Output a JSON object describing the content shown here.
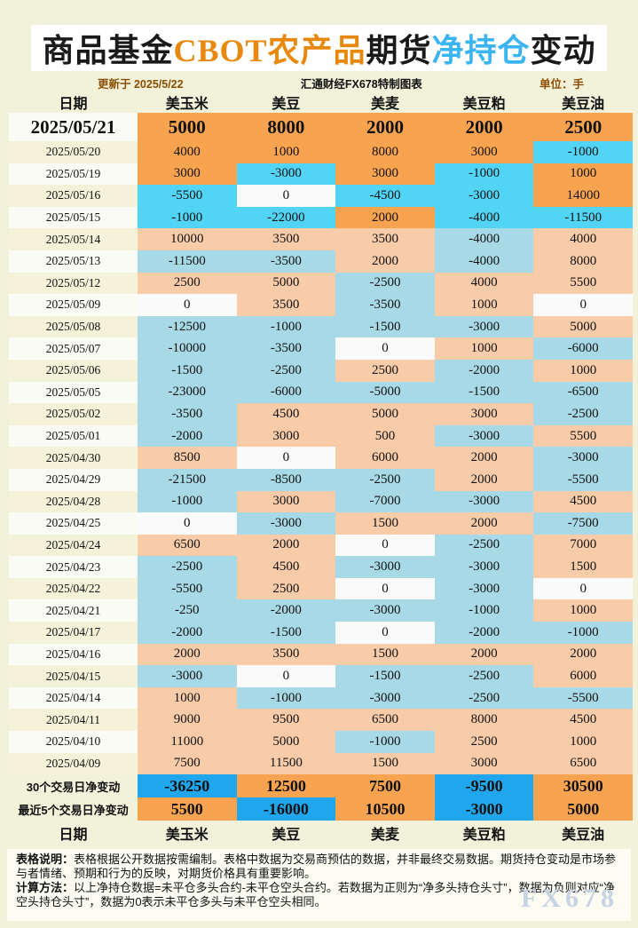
{
  "page": {
    "title_parts": [
      {
        "text": "商品基金",
        "color": "#1A1A1A"
      },
      {
        "text": "CBOT农产品",
        "color": "#E8890D"
      },
      {
        "text": "期货",
        "color": "#1A1A1A"
      },
      {
        "text": "净持仓",
        "color": "#3BB4F2"
      },
      {
        "text": "变动",
        "color": "#1A1A1A"
      }
    ],
    "meta": {
      "updated": "更新于 2025/5/22",
      "source": "汇通财经FX678特制图表",
      "unit": "单位：手"
    }
  },
  "chart_data": {
    "type": "table",
    "title": "商品基金CBOT农产品期货净持仓变动",
    "unit": "手",
    "columns": [
      "日期",
      "美玉米",
      "美豆",
      "美麦",
      "美豆粕",
      "美豆油"
    ],
    "highlight_recent_rows": 5,
    "rows": [
      {
        "date": "2025/05/21",
        "values": [
          5000,
          8000,
          2000,
          2000,
          2500
        ]
      },
      {
        "date": "2025/05/20",
        "values": [
          4000,
          1000,
          8000,
          3000,
          -1000
        ]
      },
      {
        "date": "2025/05/19",
        "values": [
          3000,
          -3000,
          3000,
          -1000,
          1000
        ]
      },
      {
        "date": "2025/05/16",
        "values": [
          -5500,
          0,
          -4500,
          -3000,
          14000
        ]
      },
      {
        "date": "2025/05/15",
        "values": [
          -1000,
          -22000,
          2000,
          -4000,
          -11500
        ]
      },
      {
        "date": "2025/05/14",
        "values": [
          10000,
          3500,
          3500,
          -4000,
          4000
        ]
      },
      {
        "date": "2025/05/13",
        "values": [
          -11500,
          -3500,
          2000,
          -4000,
          8000
        ]
      },
      {
        "date": "2025/05/12",
        "values": [
          2500,
          5000,
          -2500,
          4000,
          5500
        ]
      },
      {
        "date": "2025/05/09",
        "values": [
          0,
          3500,
          -3500,
          1000,
          0
        ]
      },
      {
        "date": "2025/05/08",
        "values": [
          -12500,
          -1000,
          -1500,
          -3000,
          5000
        ]
      },
      {
        "date": "2025/05/07",
        "values": [
          -10000,
          -3500,
          0,
          1000,
          -6000
        ]
      },
      {
        "date": "2025/05/06",
        "values": [
          -1500,
          -2500,
          2500,
          -2000,
          1000
        ]
      },
      {
        "date": "2025/05/05",
        "values": [
          -23000,
          -6000,
          -5000,
          -1500,
          -6500
        ]
      },
      {
        "date": "2025/05/02",
        "values": [
          -3500,
          4500,
          5000,
          3000,
          -2500
        ]
      },
      {
        "date": "2025/05/01",
        "values": [
          -2000,
          3000,
          500,
          -3000,
          5500
        ]
      },
      {
        "date": "2025/04/30",
        "values": [
          8500,
          0,
          6000,
          2000,
          -3000
        ]
      },
      {
        "date": "2025/04/29",
        "values": [
          -21500,
          -8500,
          -2500,
          2000,
          -5500
        ]
      },
      {
        "date": "2025/04/28",
        "values": [
          -1000,
          3000,
          -7000,
          -3000,
          4500
        ]
      },
      {
        "date": "2025/04/25",
        "values": [
          0,
          -3000,
          1500,
          2000,
          -7500
        ]
      },
      {
        "date": "2025/04/24",
        "values": [
          6500,
          2000,
          0,
          -2500,
          7000
        ]
      },
      {
        "date": "2025/04/23",
        "values": [
          -2500,
          4500,
          -3000,
          -3000,
          1500
        ]
      },
      {
        "date": "2025/04/22",
        "values": [
          -5500,
          2500,
          0,
          -3000,
          0
        ]
      },
      {
        "date": "2025/04/21",
        "values": [
          -250,
          -2000,
          -3000,
          -1000,
          1000
        ]
      },
      {
        "date": "2025/04/17",
        "values": [
          -2000,
          -1500,
          0,
          -2000,
          -1000
        ]
      },
      {
        "date": "2025/04/16",
        "values": [
          2000,
          3500,
          1500,
          2000,
          2000
        ]
      },
      {
        "date": "2025/04/15",
        "values": [
          -3000,
          0,
          -1500,
          -2500,
          6000
        ]
      },
      {
        "date": "2025/04/14",
        "values": [
          1000,
          -1000,
          -3000,
          -2500,
          -5500
        ]
      },
      {
        "date": "2025/04/11",
        "values": [
          9000,
          9500,
          6500,
          8000,
          4500
        ]
      },
      {
        "date": "2025/04/10",
        "values": [
          11000,
          5000,
          -1000,
          2500,
          1000
        ]
      },
      {
        "date": "2025/04/09",
        "values": [
          7500,
          11500,
          1500,
          3000,
          6500
        ]
      }
    ],
    "summary_rows": [
      {
        "label": "30个交易日净变动",
        "values": [
          -36250,
          12500,
          7500,
          -9500,
          30500
        ]
      },
      {
        "label": "最近5个交易日净变动",
        "values": [
          5500,
          -16000,
          10500,
          -3000,
          5000
        ]
      }
    ]
  },
  "notes": {
    "p1_label": "表格说明：",
    "p1_text": "表格根据公开数据按需编制。表格中数据为交易商预估的数据，并非最终交易数据。期货持仓变动是市场参与者情绪、预期和行为的反映，对期货价格具有重要影响。",
    "p2_label": "计算方法：",
    "p2_text": "以上净持仓数据=未平仓多头合约-未平仓空头合约。若数据为正则为“净多头持仓头寸”，数据为负则对应“净空头持仓头寸”，数据为0表示未平仓多头与未平仓空头相同。",
    "watermark": "FX678"
  },
  "colors": {
    "page_bg": "#F2F1DA",
    "positive_strong": "#F7A350",
    "negative_strong": "#52D5F5",
    "positive_pale": "#F8CCA9",
    "negative_pale": "#A7DAE6",
    "positive_summary": "#F7A350",
    "negative_summary": "#1FA6EC",
    "zero": "#FAFAFA",
    "title_orange": "#E8890D",
    "title_blue": "#3BB4F2"
  }
}
